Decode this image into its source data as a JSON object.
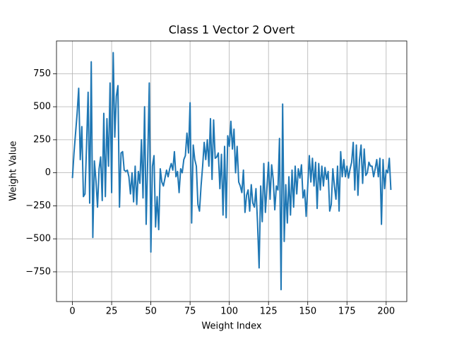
{
  "chart_data": {
    "type": "line",
    "title": "Class 1 Vector 2 Overt",
    "xlabel": "Weight Index",
    "ylabel": "Weight Value",
    "color": "#1f77b4",
    "grid": true,
    "xlim": [
      -10.15,
      213.15
    ],
    "ylim": [
      -975,
      998
    ],
    "xticks": [
      0,
      25,
      50,
      75,
      100,
      125,
      150,
      175,
      200
    ],
    "yticks": [
      {
        "value": -750,
        "label": "−750"
      },
      {
        "value": -500,
        "label": "−500"
      },
      {
        "value": -250,
        "label": "−250"
      },
      0,
      250,
      500,
      750
    ],
    "x": [
      0,
      1,
      2,
      3,
      4,
      5,
      6,
      7,
      8,
      9,
      10,
      11,
      12,
      13,
      14,
      15,
      16,
      17,
      18,
      19,
      20,
      21,
      22,
      23,
      24,
      25,
      26,
      27,
      28,
      29,
      30,
      31,
      32,
      33,
      34,
      35,
      36,
      37,
      38,
      39,
      40,
      41,
      42,
      43,
      44,
      45,
      46,
      47,
      48,
      49,
      50,
      51,
      52,
      53,
      54,
      55,
      56,
      57,
      58,
      59,
      60,
      61,
      62,
      63,
      64,
      65,
      66,
      67,
      68,
      69,
      70,
      71,
      72,
      73,
      74,
      75,
      76,
      77,
      78,
      79,
      80,
      81,
      82,
      83,
      84,
      85,
      86,
      87,
      88,
      89,
      90,
      91,
      92,
      93,
      94,
      95,
      96,
      97,
      98,
      99,
      100,
      101,
      102,
      103,
      104,
      105,
      106,
      107,
      108,
      109,
      110,
      111,
      112,
      113,
      114,
      115,
      116,
      117,
      118,
      119,
      120,
      121,
      122,
      123,
      124,
      125,
      126,
      127,
      128,
      129,
      130,
      131,
      132,
      133,
      134,
      135,
      136,
      137,
      138,
      139,
      140,
      141,
      142,
      143,
      144,
      145,
      146,
      147,
      148,
      149,
      150,
      151,
      152,
      153,
      154,
      155,
      156,
      157,
      158,
      159,
      160,
      161,
      162,
      163,
      164,
      165,
      166,
      167,
      168,
      169,
      170,
      171,
      172,
      173,
      174,
      175,
      176,
      177,
      178,
      179,
      180,
      181,
      182,
      183,
      184,
      185,
      186,
      187,
      188,
      189,
      190,
      191,
      192,
      193,
      194,
      195,
      196,
      197,
      198,
      199,
      200,
      201,
      202,
      203
    ],
    "values": [
      -40,
      150,
      300,
      450,
      640,
      100,
      350,
      -180,
      -160,
      200,
      610,
      -230,
      840,
      -490,
      90,
      -60,
      -260,
      30,
      120,
      -210,
      450,
      -180,
      410,
      50,
      680,
      -150,
      910,
      270,
      580,
      660,
      -260,
      150,
      160,
      20,
      10,
      20,
      -30,
      -160,
      0,
      -220,
      50,
      -240,
      10,
      -80,
      250,
      -190,
      500,
      -390,
      100,
      680,
      -600,
      50,
      130,
      -410,
      -180,
      -430,
      30,
      -70,
      -100,
      -40,
      20,
      -30,
      30,
      70,
      20,
      160,
      -30,
      10,
      -150,
      30,
      0,
      100,
      130,
      300,
      150,
      530,
      -380,
      210,
      100,
      50,
      -240,
      -290,
      -100,
      50,
      230,
      100,
      250,
      50,
      410,
      -50,
      400,
      110,
      120,
      150,
      -120,
      140,
      -320,
      200,
      -340,
      280,
      200,
      390,
      180,
      330,
      0,
      200,
      -70,
      -100,
      -150,
      20,
      -300,
      -170,
      -130,
      -290,
      -90,
      -230,
      -260,
      -120,
      -380,
      -720,
      -100,
      -370,
      70,
      -300,
      -110,
      80,
      -200,
      60,
      -50,
      -280,
      -100,
      -130,
      260,
      -885,
      520,
      -520,
      -90,
      -380,
      -30,
      -320,
      20,
      -260,
      50,
      -160,
      30,
      -40,
      60,
      -190,
      -130,
      -330,
      -100,
      130,
      -70,
      110,
      -100,
      80,
      -270,
      70,
      -130,
      50,
      -100,
      40,
      -50,
      10,
      -290,
      -240,
      30,
      -100,
      -200,
      50,
      -290,
      160,
      -30,
      100,
      -30,
      50,
      -40,
      30,
      80,
      230,
      -130,
      210,
      -170,
      100,
      210,
      -80,
      180,
      -20,
      0,
      80,
      50,
      50,
      -30,
      30,
      100,
      -30,
      110,
      -390,
      100,
      -120,
      20,
      0,
      110,
      -130
    ]
  }
}
